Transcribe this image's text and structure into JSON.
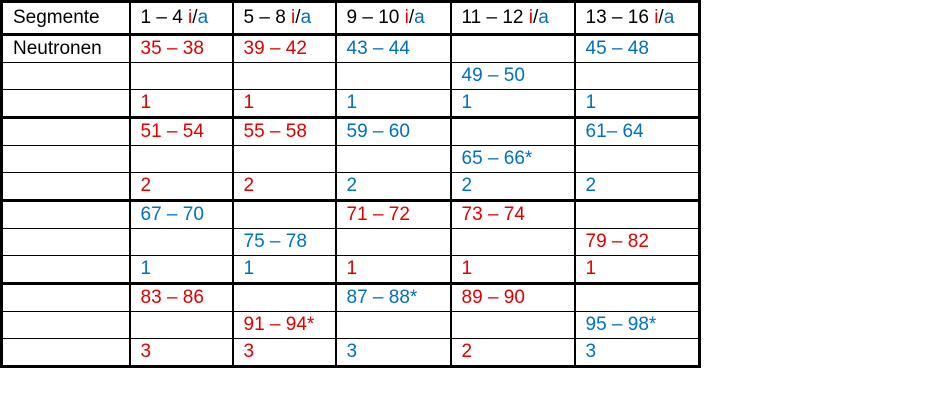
{
  "table": {
    "header": [
      {
        "text": "Segmente"
      },
      {
        "range": "1 – 4",
        "i": "i",
        "sep": "/",
        "a": "a"
      },
      {
        "range": "5 – 8",
        "i": "i",
        "sep": "/",
        "a": "a"
      },
      {
        "range": "9 – 10",
        "i": "i",
        "sep": "/",
        "a": "a"
      },
      {
        "range": "11 – 12",
        "i": "i",
        "sep": "/",
        "a": "a"
      },
      {
        "range": "13 – 16",
        "i": "i",
        "sep": "/",
        "a": "a"
      }
    ],
    "colors": {
      "i": "#e00000",
      "a": "#0070c0"
    },
    "rows": [
      {
        "label": "Neutronen",
        "cells": [
          {
            "text": "35 – 38",
            "color": "#e00000"
          },
          {
            "text": "39 – 42",
            "color": "#e00000"
          },
          {
            "text": "43 – 44",
            "color": "#0070c0"
          },
          null,
          {
            "text": "45 – 48",
            "color": "#0070c0"
          }
        ]
      },
      {
        "label": null,
        "cells": [
          null,
          null,
          null,
          {
            "text": "49 – 50",
            "color": "#0070c0"
          },
          null
        ]
      },
      {
        "label": null,
        "cells": [
          {
            "text": "1",
            "color": "#e00000"
          },
          {
            "text": "1",
            "color": "#e00000"
          },
          {
            "text": "1",
            "color": "#0070c0"
          },
          {
            "text": "1",
            "color": "#0070c0"
          },
          {
            "text": "1",
            "color": "#0070c0"
          }
        ]
      },
      {
        "label": null,
        "cells": [
          {
            "text": "51 – 54",
            "color": "#e00000"
          },
          {
            "text": "55 – 58",
            "color": "#e00000"
          },
          {
            "text": "59 – 60",
            "color": "#0070c0"
          },
          null,
          {
            "text": "61– 64",
            "color": "#0070c0"
          }
        ]
      },
      {
        "label": null,
        "cells": [
          null,
          null,
          null,
          {
            "text": "65 – 66*",
            "color": "#0070c0"
          },
          null
        ]
      },
      {
        "label": null,
        "cells": [
          {
            "text": "2",
            "color": "#e00000"
          },
          {
            "text": "2",
            "color": "#e00000"
          },
          {
            "text": "2",
            "color": "#0070c0"
          },
          {
            "text": "2",
            "color": "#0070c0"
          },
          {
            "text": "2",
            "color": "#0070c0"
          }
        ]
      },
      {
        "label": null,
        "cells": [
          {
            "text": "67 – 70",
            "color": "#0070c0"
          },
          null,
          {
            "text": "71 – 72",
            "color": "#e00000"
          },
          {
            "text": "73 – 74",
            "color": "#e00000"
          },
          null
        ]
      },
      {
        "label": null,
        "cells": [
          null,
          {
            "text": "75 – 78",
            "color": "#0070c0"
          },
          null,
          null,
          {
            "text": "79 – 82",
            "color": "#e00000"
          }
        ]
      },
      {
        "label": null,
        "cells": [
          {
            "text": "1",
            "color": "#0070c0"
          },
          {
            "text": "1",
            "color": "#0070c0"
          },
          {
            "text": "1",
            "color": "#e00000"
          },
          {
            "text": "1",
            "color": "#e00000"
          },
          {
            "text": "1",
            "color": "#e00000"
          }
        ]
      },
      {
        "label": null,
        "cells": [
          {
            "text": "83 – 86",
            "color": "#e00000"
          },
          null,
          {
            "text": "87 – 88*",
            "color": "#0070c0"
          },
          {
            "text": "89 – 90",
            "color": "#e00000"
          },
          null
        ]
      },
      {
        "label": null,
        "cells": [
          null,
          {
            "text": "91 – 94*",
            "color": "#e00000"
          },
          null,
          null,
          {
            "text": "95 – 98*",
            "color": "#0070c0"
          }
        ]
      },
      {
        "label": null,
        "cells": [
          {
            "text": "3",
            "color": "#e00000"
          },
          {
            "text": "3",
            "color": "#e00000"
          },
          {
            "text": "3",
            "color": "#0070c0"
          },
          {
            "text": "2",
            "color": "#e00000"
          },
          {
            "text": "3",
            "color": "#0070c0"
          }
        ]
      }
    ]
  }
}
